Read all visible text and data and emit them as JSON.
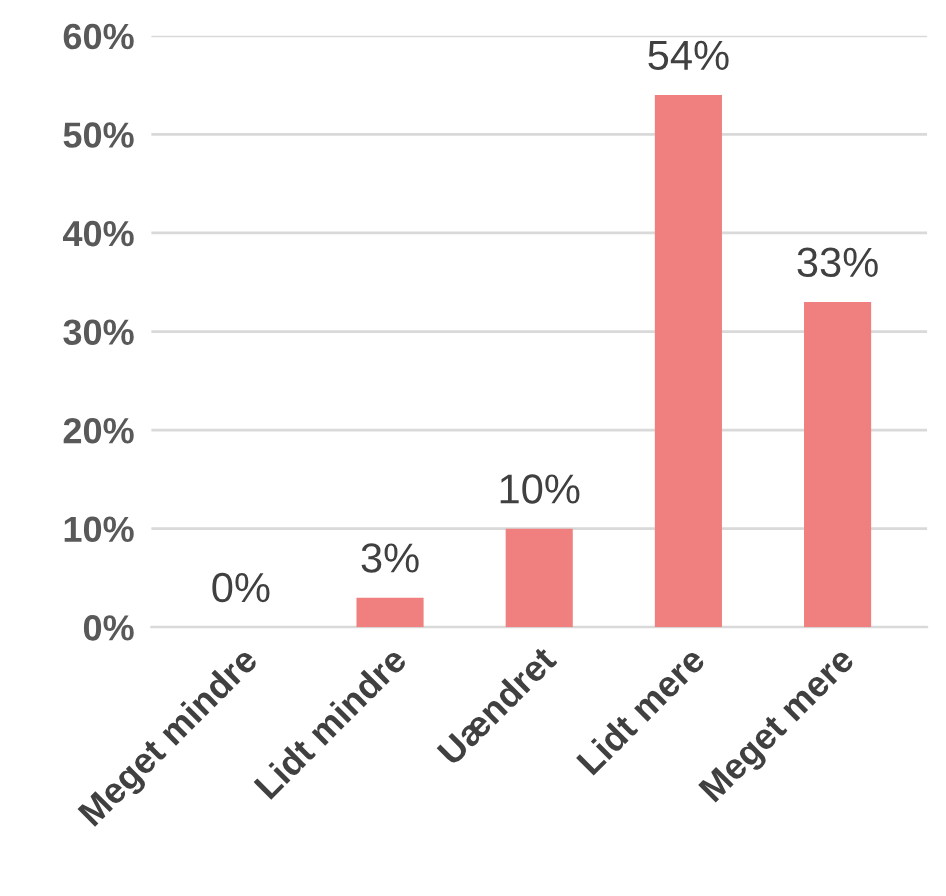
{
  "chart_data": {
    "type": "bar",
    "categories": [
      "Meget mindre",
      "Lidt mindre",
      "Uændret",
      "Lidt mere",
      "Meget mere"
    ],
    "values": [
      0,
      3,
      10,
      54,
      33
    ],
    "value_labels": [
      "0%",
      "3%",
      "10%",
      "54%",
      "33%"
    ],
    "color": "#f08080",
    "ylim": [
      0,
      60
    ],
    "yticks": [
      {
        "value": 0,
        "label": "0%"
      },
      {
        "value": 10,
        "label": "10%"
      },
      {
        "value": 20,
        "label": "20%"
      },
      {
        "value": 30,
        "label": "30%"
      },
      {
        "value": 40,
        "label": "40%"
      },
      {
        "value": 50,
        "label": "50%"
      },
      {
        "value": 60,
        "label": "60%"
      }
    ],
    "grid": "y"
  }
}
